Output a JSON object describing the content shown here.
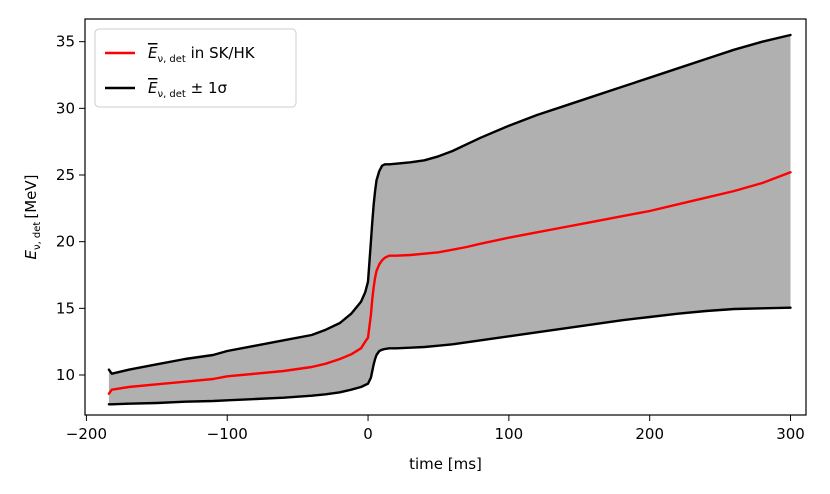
{
  "chart_data": {
    "type": "line",
    "title": "",
    "xlabel": "time [ms]",
    "ylabel": "E_{ν, det} [MeV]",
    "xlim": [
      -201,
      311
    ],
    "ylim": [
      7.0,
      36.7
    ],
    "xticks": [
      -200,
      -100,
      0,
      100,
      200,
      300
    ],
    "xtick_labels": [
      "−200",
      "−100",
      "0",
      "100",
      "200",
      "300"
    ],
    "yticks": [
      10,
      15,
      20,
      25,
      30,
      35
    ],
    "ytick_labels": [
      "10",
      "15",
      "20",
      "25",
      "30",
      "35"
    ],
    "grid": false,
    "legend_position": "top-left",
    "legend": {
      "mean_label": {
        "symbol": "E",
        "sub": "ν, det",
        "suffix": " in SK/HK"
      },
      "band_label": {
        "symbol": "E",
        "sub": "ν, det",
        "suffix": " ± 1σ"
      }
    },
    "series": [
      {
        "name": "mean",
        "color": "#ff0000",
        "x": [
          -184,
          -182,
          -170,
          -150,
          -130,
          -110,
          -100,
          -80,
          -60,
          -40,
          -30,
          -20,
          -12,
          -5,
          -2,
          0,
          2,
          3,
          4,
          5,
          6,
          8,
          10,
          12,
          15,
          20,
          30,
          40,
          50,
          60,
          70,
          80,
          100,
          120,
          140,
          160,
          180,
          200,
          220,
          240,
          260,
          280,
          300
        ],
        "values": [
          8.6,
          8.9,
          9.1,
          9.3,
          9.5,
          9.7,
          9.9,
          10.1,
          10.3,
          10.6,
          10.85,
          11.2,
          11.55,
          12.0,
          12.5,
          12.8,
          14.5,
          15.7,
          16.6,
          17.3,
          17.8,
          18.3,
          18.6,
          18.8,
          18.95,
          18.95,
          19.0,
          19.1,
          19.2,
          19.4,
          19.6,
          19.85,
          20.3,
          20.7,
          21.1,
          21.5,
          21.9,
          22.3,
          22.8,
          23.3,
          23.8,
          24.4,
          25.2
        ]
      },
      {
        "name": "upper",
        "color": "#000000",
        "x": [
          -184,
          -182,
          -170,
          -150,
          -130,
          -110,
          -100,
          -80,
          -60,
          -40,
          -30,
          -20,
          -12,
          -5,
          -2,
          0,
          2,
          3,
          4,
          5,
          6,
          8,
          10,
          12,
          15,
          20,
          30,
          40,
          50,
          60,
          70,
          80,
          100,
          120,
          140,
          160,
          180,
          200,
          220,
          240,
          260,
          280,
          300
        ],
        "values": [
          10.4,
          10.1,
          10.4,
          10.8,
          11.2,
          11.5,
          11.8,
          12.2,
          12.6,
          13.0,
          13.4,
          13.9,
          14.6,
          15.5,
          16.2,
          17.0,
          20.0,
          21.5,
          22.8,
          23.8,
          24.6,
          25.3,
          25.7,
          25.8,
          25.8,
          25.85,
          25.95,
          26.1,
          26.4,
          26.8,
          27.3,
          27.8,
          28.7,
          29.5,
          30.2,
          30.9,
          31.6,
          32.3,
          33.0,
          33.7,
          34.4,
          35.0,
          35.5
        ]
      },
      {
        "name": "lower",
        "color": "#000000",
        "x": [
          -184,
          -182,
          -170,
          -150,
          -130,
          -110,
          -100,
          -80,
          -60,
          -40,
          -30,
          -20,
          -12,
          -5,
          -2,
          0,
          2,
          3,
          4,
          5,
          6,
          8,
          10,
          12,
          15,
          20,
          30,
          40,
          50,
          60,
          70,
          80,
          100,
          120,
          140,
          160,
          180,
          200,
          220,
          240,
          260,
          280,
          300
        ],
        "values": [
          7.8,
          7.8,
          7.85,
          7.9,
          8.0,
          8.05,
          8.1,
          8.2,
          8.3,
          8.45,
          8.55,
          8.7,
          8.9,
          9.1,
          9.25,
          9.35,
          9.8,
          10.3,
          10.8,
          11.2,
          11.5,
          11.8,
          11.9,
          11.95,
          12.0,
          12.0,
          12.05,
          12.1,
          12.2,
          12.3,
          12.45,
          12.6,
          12.9,
          13.2,
          13.5,
          13.8,
          14.1,
          14.35,
          14.6,
          14.8,
          14.95,
          15.0,
          15.05
        ]
      }
    ]
  }
}
